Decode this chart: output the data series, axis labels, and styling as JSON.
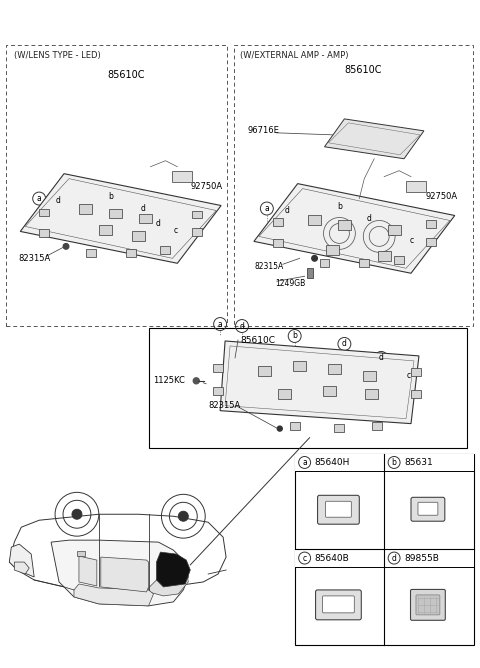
{
  "bg_color": "#ffffff",
  "fig_width": 4.8,
  "fig_height": 6.68,
  "dpi": 100,
  "box1_label": "85610C",
  "box1_sublabel": "92750A",
  "box1_part": "82315A",
  "box1_header": "(W/LENS TYPE - LED)",
  "box2_label": "85610C",
  "box2_sublabel": "92750A",
  "box2_extra": "96716E",
  "box2_part1": "82315A",
  "box2_part2": "1249GB",
  "box2_header": "(W/EXTERNAL AMP - AMP)",
  "box3_label": "85610C",
  "box3_part1": "1125KC",
  "box3_part2": "82315A",
  "leg_a_label": "85640H",
  "leg_b_label": "85631",
  "leg_c_label": "85640B",
  "leg_d_label": "89855B"
}
